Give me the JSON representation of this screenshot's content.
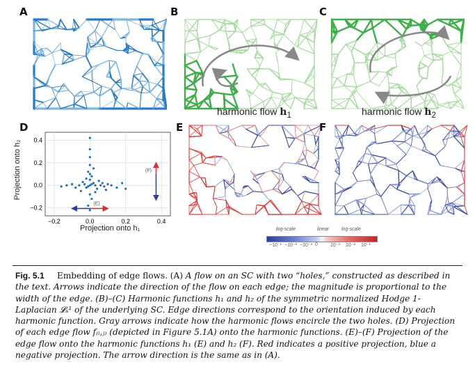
{
  "panels": {
    "a": {
      "label": "A"
    },
    "b": {
      "label": "B",
      "subtitle": "harmonic flow",
      "vec": "h",
      "sub": "1"
    },
    "c": {
      "label": "C",
      "subtitle": "harmonic flow",
      "vec": "h",
      "sub": "2"
    },
    "d": {
      "label": "D"
    },
    "e": {
      "label": "E"
    },
    "f": {
      "label": "F"
    }
  },
  "scatter": {
    "xlabel": "Projection onto h₁",
    "ylabel": "Projection onto h₂",
    "xticks": [
      "−0.2",
      "0.0",
      "0.2",
      "0.4"
    ],
    "yticks": [
      "0.4",
      "0.2",
      "0.0",
      "−0.2"
    ],
    "annot_f": "(F)",
    "annot_e": "(E)"
  },
  "chart_data": {
    "type": "scatter",
    "xlim": [
      -0.25,
      0.45
    ],
    "ylim": [
      -0.27,
      0.47
    ],
    "grid": true,
    "x": [
      0.0,
      0.01,
      -0.01,
      0.02,
      -0.02,
      0.03,
      -0.03,
      0.0,
      0.01,
      -0.01,
      0.04,
      -0.04,
      0.06,
      0.08,
      0.1,
      0.12,
      0.15,
      -0.06,
      -0.08,
      -0.1,
      -0.13,
      0.0,
      0.0,
      0.0,
      0.0,
      0.01,
      -0.01,
      0.0,
      0.02,
      0.2,
      0.18,
      -0.16,
      0.05,
      0.07,
      -0.05,
      0.0,
      0.0,
      -0.02,
      0.03,
      0.09
    ],
    "y": [
      0.0,
      0.01,
      -0.01,
      0.02,
      -0.02,
      0.0,
      0.01,
      0.05,
      0.08,
      0.12,
      -0.03,
      0.03,
      0.0,
      -0.01,
      0.01,
      0.0,
      -0.02,
      0.0,
      -0.02,
      0.01,
      0.0,
      0.18,
      0.25,
      0.42,
      -0.08,
      -0.12,
      -0.18,
      -0.22,
      0.15,
      -0.03,
      0.02,
      -0.01,
      0.04,
      0.02,
      -0.05,
      0.32,
      0.1,
      0.06,
      -0.06,
      -0.04
    ]
  },
  "colorbar": {
    "left_scale": "log-scale",
    "mid_scale": "linear",
    "right_scale": "log-scale",
    "ticks": [
      "−10⁻¹",
      "−10⁻²",
      "−10⁻³",
      "0",
      "10⁻³",
      "10⁻²",
      "10⁻¹"
    ]
  },
  "caption": {
    "fig": "Fig. 5.1",
    "line1_a": "Embedding of edge flows. (A) ",
    "line1_b": "A flow on an SC with two “holes,” constructed as described in",
    "rest": "the text. Arrows indicate the direction of the flow on each edge; the magnitude is proportional to the width of the edge. (B)–(C) Harmonic functions h₁ and h₂ of the symmetric normalized Hodge 1-Laplacian 𝓛ₛ¹ of the underlying SC. Edge directions correspond to the orientation induced by each harmonic function. Gray arrows indicate how the harmonic flows encircle the two holes. (D) Projection of each edge flow f₍ᵢ,ⱼ₎ (depicted in Figure 5.1A) onto the harmonic functions. (E)–(F) Projection of the edge flow onto the harmonic functions h₁ (E) and h₂ (F). Red indicates a positive projection, blue a negative projection. The arrow direction is the same as in (A)."
  },
  "colors": {
    "blue": "#2a7bbf",
    "green": "#3fae4a",
    "light_green": "#a7d9a0",
    "red": "#d94040",
    "navy": "#3a4a9f"
  }
}
